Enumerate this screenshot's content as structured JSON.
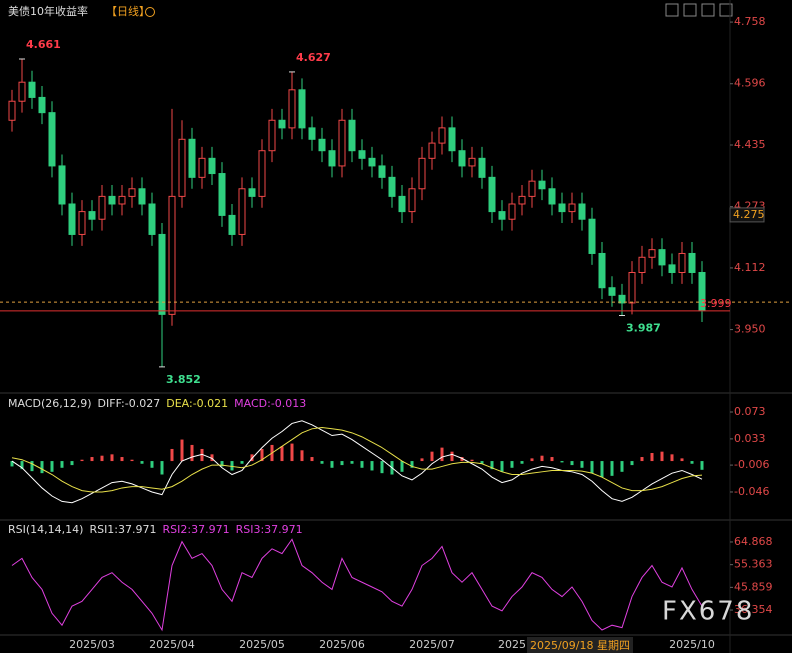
{
  "chart_data": [
    {
      "type": "candlestick",
      "title": "美债10年收益率",
      "period": "【日线】",
      "up_color": "#f04848",
      "down_color": "#2fcf7f",
      "categories": [
        null,
        null,
        null,
        null,
        null,
        null,
        null,
        null,
        "2025/03",
        null,
        null,
        null,
        null,
        null,
        null,
        null,
        "2025/04",
        null,
        null,
        null,
        null,
        null,
        null,
        null,
        null,
        "2025/05",
        null,
        null,
        null,
        null,
        null,
        null,
        null,
        "2025/06",
        null,
        null,
        null,
        null,
        null,
        null,
        null,
        null,
        "2025/07",
        null,
        null,
        null,
        null,
        null,
        null,
        null,
        "2025",
        null,
        null,
        null,
        null,
        null,
        null,
        null,
        null,
        null,
        null,
        null,
        null,
        null,
        null,
        null,
        null,
        null,
        "2025/10",
        null
      ],
      "open": [
        4.5,
        4.55,
        4.6,
        4.56,
        4.52,
        4.38,
        4.28,
        4.2,
        4.26,
        4.24,
        4.3,
        4.28,
        4.3,
        4.32,
        4.28,
        4.2,
        3.99,
        4.3,
        4.45,
        4.35,
        4.4,
        4.36,
        4.25,
        4.2,
        4.32,
        4.3,
        4.42,
        4.5,
        4.48,
        4.58,
        4.48,
        4.45,
        4.42,
        4.38,
        4.5,
        4.42,
        4.4,
        4.38,
        4.35,
        4.3,
        4.26,
        4.32,
        4.4,
        4.44,
        4.48,
        4.42,
        4.38,
        4.4,
        4.35,
        4.26,
        4.24,
        4.28,
        4.3,
        4.34,
        4.32,
        4.28,
        4.26,
        4.28,
        4.24,
        4.15,
        4.06,
        4.04,
        4.02,
        4.1,
        4.14,
        4.16,
        4.12,
        4.1,
        4.15,
        4.1
      ],
      "high": [
        4.58,
        4.661,
        4.63,
        4.59,
        4.55,
        4.41,
        4.31,
        4.29,
        4.29,
        4.33,
        4.33,
        4.33,
        4.35,
        4.35,
        4.31,
        4.23,
        4.53,
        4.5,
        4.48,
        4.43,
        4.43,
        4.39,
        4.28,
        4.35,
        4.35,
        4.45,
        4.53,
        4.53,
        4.627,
        4.61,
        4.51,
        4.48,
        4.45,
        4.53,
        4.53,
        4.45,
        4.43,
        4.41,
        4.38,
        4.33,
        4.35,
        4.43,
        4.47,
        4.51,
        4.51,
        4.45,
        4.43,
        4.43,
        4.38,
        4.29,
        4.31,
        4.33,
        4.37,
        4.37,
        4.35,
        4.31,
        4.31,
        4.31,
        4.27,
        4.18,
        4.09,
        4.07,
        4.13,
        4.17,
        4.19,
        4.19,
        4.15,
        4.18,
        4.18,
        4.13
      ],
      "low": [
        4.47,
        4.52,
        4.53,
        4.49,
        4.35,
        4.25,
        4.17,
        4.17,
        4.21,
        4.21,
        4.25,
        4.25,
        4.27,
        4.25,
        4.17,
        3.852,
        3.96,
        4.27,
        4.32,
        4.32,
        4.33,
        4.22,
        4.17,
        4.17,
        4.27,
        4.27,
        4.39,
        4.45,
        4.45,
        4.45,
        4.42,
        4.39,
        4.35,
        4.35,
        4.39,
        4.37,
        4.35,
        4.32,
        4.27,
        4.23,
        4.23,
        4.29,
        4.37,
        4.41,
        4.39,
        4.35,
        4.35,
        4.32,
        4.23,
        4.21,
        4.21,
        4.25,
        4.27,
        4.29,
        4.25,
        4.23,
        4.23,
        4.21,
        4.12,
        4.03,
        4.01,
        3.987,
        3.99,
        4.07,
        4.11,
        4.09,
        4.07,
        4.07,
        4.07,
        3.97
      ],
      "close": [
        4.55,
        4.6,
        4.56,
        4.52,
        4.38,
        4.28,
        4.2,
        4.26,
        4.24,
        4.3,
        4.28,
        4.3,
        4.32,
        4.28,
        4.2,
        3.99,
        4.3,
        4.45,
        4.35,
        4.4,
        4.36,
        4.25,
        4.2,
        4.32,
        4.3,
        4.42,
        4.5,
        4.48,
        4.58,
        4.48,
        4.45,
        4.42,
        4.38,
        4.5,
        4.42,
        4.4,
        4.38,
        4.35,
        4.3,
        4.26,
        4.32,
        4.4,
        4.44,
        4.48,
        4.42,
        4.38,
        4.4,
        4.35,
        4.26,
        4.24,
        4.28,
        4.3,
        4.34,
        4.32,
        4.28,
        4.26,
        4.28,
        4.24,
        4.15,
        4.06,
        4.04,
        4.02,
        4.1,
        4.14,
        4.16,
        4.12,
        4.1,
        4.15,
        4.1,
        4.0
      ],
      "annotations": [
        4.661,
        4.627,
        3.852,
        3.987
      ],
      "marker_price": 4.275,
      "last_price": 3.999,
      "reference_level": 4.022,
      "ylim": [
        3.786,
        4.816
      ],
      "yticks": [
        4.758,
        4.596,
        4.435,
        4.273,
        4.112,
        {
          "value": 3.95,
          "label": "3.950"
        }
      ],
      "crosshair_label": "2025/09/18 星期四"
    },
    {
      "type": "macd",
      "legend": [
        "MACD(26,12,9)",
        "DIFF:-0.027",
        "DEA:-0.021",
        "MACD:-0.013"
      ],
      "series": [
        {
          "name": "MACD",
          "kind": "histogram",
          "values": [
            -0.008,
            -0.012,
            -0.015,
            -0.018,
            -0.016,
            -0.01,
            -0.006,
            0.002,
            0.006,
            0.008,
            0.01,
            0.006,
            0.002,
            -0.004,
            -0.01,
            -0.02,
            0.018,
            0.032,
            0.024,
            0.018,
            0.01,
            -0.008,
            -0.014,
            -0.004,
            0.01,
            0.018,
            0.024,
            0.022,
            0.026,
            0.016,
            0.006,
            -0.004,
            -0.01,
            -0.006,
            -0.004,
            -0.01,
            -0.014,
            -0.018,
            -0.02,
            -0.016,
            -0.01,
            0.004,
            0.014,
            0.02,
            0.014,
            0.006,
            0.002,
            -0.004,
            -0.012,
            -0.016,
            -0.01,
            -0.004,
            0.004,
            0.008,
            0.006,
            -0.002,
            -0.006,
            -0.01,
            -0.018,
            -0.024,
            -0.022,
            -0.016,
            -0.006,
            0.006,
            0.012,
            0.014,
            0.01,
            0.004,
            -0.004,
            -0.013
          ]
        },
        {
          "name": "DIFF",
          "color": "#ffffff",
          "values": [
            0.0,
            -0.01,
            -0.025,
            -0.04,
            -0.052,
            -0.06,
            -0.062,
            -0.056,
            -0.048,
            -0.04,
            -0.032,
            -0.03,
            -0.034,
            -0.04,
            -0.046,
            -0.05,
            -0.02,
            0.0,
            0.006,
            0.01,
            0.004,
            -0.01,
            -0.02,
            -0.014,
            0.004,
            0.02,
            0.034,
            0.044,
            0.056,
            0.06,
            0.054,
            0.046,
            0.038,
            0.04,
            0.032,
            0.022,
            0.012,
            0.002,
            -0.01,
            -0.022,
            -0.028,
            -0.018,
            -0.004,
            0.006,
            0.01,
            0.004,
            -0.004,
            -0.012,
            -0.024,
            -0.032,
            -0.028,
            -0.018,
            -0.012,
            -0.008,
            -0.01,
            -0.014,
            -0.016,
            -0.02,
            -0.03,
            -0.044,
            -0.056,
            -0.06,
            -0.054,
            -0.044,
            -0.034,
            -0.026,
            -0.018,
            -0.014,
            -0.02,
            -0.027
          ]
        },
        {
          "name": "DEA",
          "color": "#e8e04a",
          "values": [
            0.005,
            0.002,
            -0.004,
            -0.012,
            -0.02,
            -0.03,
            -0.038,
            -0.044,
            -0.046,
            -0.046,
            -0.044,
            -0.04,
            -0.038,
            -0.038,
            -0.04,
            -0.042,
            -0.038,
            -0.03,
            -0.02,
            -0.012,
            -0.006,
            -0.006,
            -0.008,
            -0.01,
            -0.006,
            0.002,
            0.012,
            0.022,
            0.032,
            0.042,
            0.048,
            0.05,
            0.048,
            0.046,
            0.042,
            0.036,
            0.028,
            0.02,
            0.01,
            0.0,
            -0.008,
            -0.012,
            -0.012,
            -0.008,
            -0.004,
            -0.002,
            -0.002,
            -0.004,
            -0.01,
            -0.016,
            -0.02,
            -0.02,
            -0.018,
            -0.016,
            -0.014,
            -0.014,
            -0.014,
            -0.015,
            -0.018,
            -0.024,
            -0.032,
            -0.04,
            -0.044,
            -0.044,
            -0.042,
            -0.038,
            -0.032,
            -0.026,
            -0.022,
            -0.021
          ]
        }
      ],
      "ylim": [
        -0.0877,
        0.0983
      ],
      "yticks": [
        0.073,
        0.033,
        -0.006,
        -0.046
      ]
    },
    {
      "type": "line",
      "legend": [
        "RSI(14,14,14)",
        "RSI1:37.971",
        "RSI2:37.971",
        "RSI3:37.971"
      ],
      "series": [
        {
          "name": "RSI1",
          "color": "#e040e0",
          "values": [
            55,
            58,
            50,
            45,
            35,
            30,
            38,
            40,
            45,
            50,
            52,
            48,
            45,
            40,
            35,
            28,
            55,
            65,
            58,
            60,
            55,
            45,
            40,
            52,
            50,
            58,
            62,
            60,
            66,
            55,
            52,
            48,
            45,
            58,
            50,
            48,
            46,
            44,
            40,
            38,
            45,
            55,
            58,
            63,
            52,
            48,
            52,
            45,
            38,
            36,
            42,
            46,
            52,
            50,
            45,
            42,
            46,
            40,
            32,
            28,
            30,
            29,
            42,
            50,
            55,
            48,
            46,
            54,
            45,
            37.971
          ]
        }
      ],
      "ylim": [
        25.9,
        73.65
      ],
      "yticks": [
        64.868,
        55.363,
        45.859,
        36.354
      ]
    }
  ],
  "watermark": "FX678"
}
